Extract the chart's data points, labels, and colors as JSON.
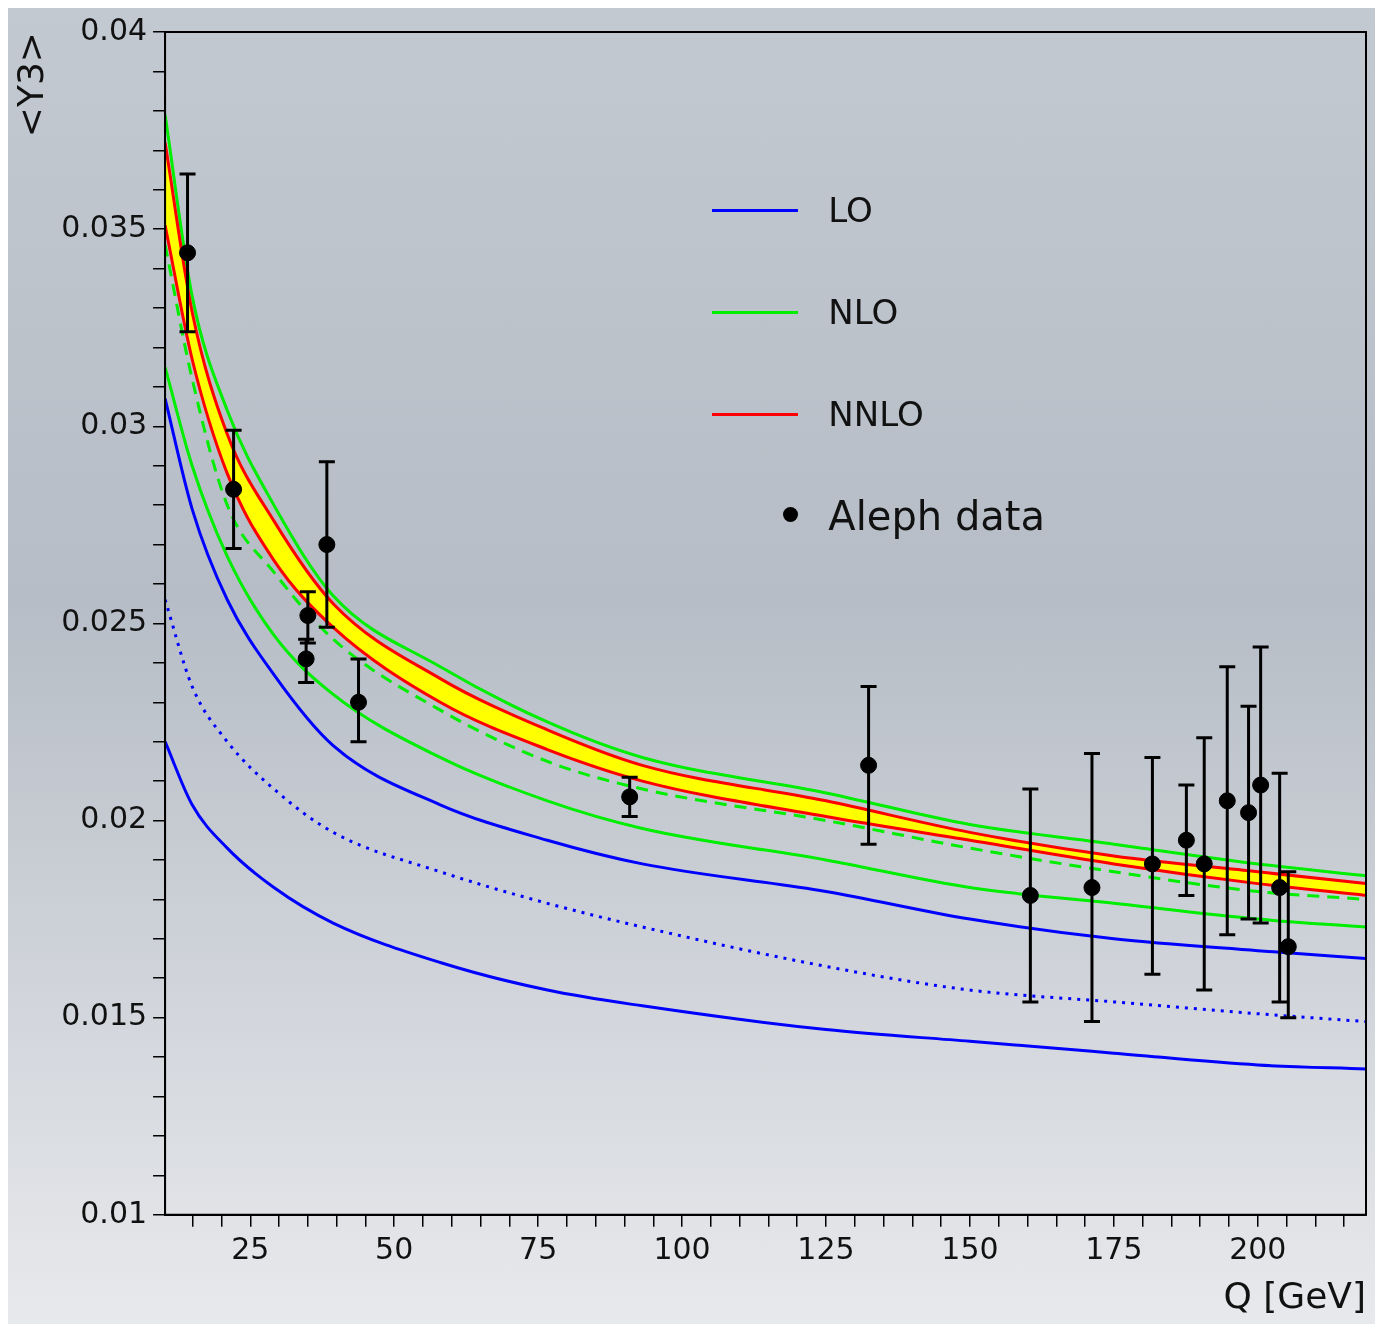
{
  "chart_data": {
    "type": "line",
    "xlabel": "Q [GeV]",
    "ylabel": "<Y3>",
    "xlim": [
      10.2,
      218.8
    ],
    "xticks": [
      {
        "value": 15,
        "label": null
      },
      {
        "value": 20,
        "label": null
      },
      25,
      {
        "value": 30,
        "label": null
      },
      {
        "value": 35,
        "label": null
      },
      {
        "value": 40,
        "label": null
      },
      {
        "value": 45,
        "label": null
      },
      50,
      {
        "value": 55,
        "label": null
      },
      {
        "value": 60,
        "label": null
      },
      {
        "value": 65,
        "label": null
      },
      {
        "value": 70,
        "label": null
      },
      75,
      {
        "value": 80,
        "label": null
      },
      {
        "value": 85,
        "label": null
      },
      {
        "value": 90,
        "label": null
      },
      {
        "value": 95,
        "label": null
      },
      100,
      {
        "value": 105,
        "label": null
      },
      {
        "value": 110,
        "label": null
      },
      {
        "value": 115,
        "label": null
      },
      {
        "value": 120,
        "label": null
      },
      125,
      {
        "value": 130,
        "label": null
      },
      {
        "value": 135,
        "label": null
      },
      {
        "value": 140,
        "label": null
      },
      {
        "value": 145,
        "label": null
      },
      150,
      {
        "value": 155,
        "label": null
      },
      {
        "value": 160,
        "label": null
      },
      {
        "value": 165,
        "label": null
      },
      {
        "value": 170,
        "label": null
      },
      175,
      {
        "value": 180,
        "label": null
      },
      {
        "value": 185,
        "label": null
      },
      {
        "value": 190,
        "label": null
      },
      {
        "value": 195,
        "label": null
      },
      200,
      {
        "value": 205,
        "label": null
      },
      {
        "value": 210,
        "label": null
      },
      {
        "value": 215,
        "label": null
      }
    ],
    "ylim": [
      0.01,
      0.04
    ],
    "yticks": [
      0.01,
      {
        "value": 0.011,
        "label": null
      },
      {
        "value": 0.012,
        "label": null
      },
      {
        "value": 0.013,
        "label": null
      },
      {
        "value": 0.014,
        "label": null
      },
      0.015,
      {
        "value": 0.016,
        "label": null
      },
      {
        "value": 0.017,
        "label": null
      },
      {
        "value": 0.018,
        "label": null
      },
      {
        "value": 0.019,
        "label": null
      },
      0.02,
      {
        "value": 0.021,
        "label": null
      },
      {
        "value": 0.022,
        "label": null
      },
      {
        "value": 0.023,
        "label": null
      },
      {
        "value": 0.024,
        "label": null
      },
      0.025,
      {
        "value": 0.026,
        "label": null
      },
      {
        "value": 0.027,
        "label": null
      },
      {
        "value": 0.028,
        "label": null
      },
      {
        "value": 0.029,
        "label": null
      },
      0.03,
      {
        "value": 0.031,
        "label": null
      },
      {
        "value": 0.032,
        "label": null
      },
      {
        "value": 0.033,
        "label": null
      },
      {
        "value": 0.034,
        "label": null
      },
      0.035,
      {
        "value": 0.036,
        "label": null
      },
      {
        "value": 0.037,
        "label": null
      },
      {
        "value": 0.038,
        "label": null
      },
      {
        "value": 0.039,
        "label": null
      },
      0.04
    ],
    "grid": false,
    "legend": "top right",
    "x": [
      10.2,
      14.9,
      21,
      29.1,
      39.4,
      58,
      76.6,
      93.1,
      125,
      150,
      175,
      200,
      218.8
    ],
    "series": [
      {
        "name": "LO",
        "color": "#0000ff",
        "line_style": "solid",
        "values": [
          0.022,
          0.0204,
          0.0193,
          0.0183,
          0.0174,
          0.0164,
          0.0157,
          0.0153,
          0.0147,
          0.0144,
          0.0141,
          0.0138,
          0.0137
        ]
      },
      {
        "color": "#0000ff",
        "line_style": "solid",
        "values": [
          0.0307,
          0.0279,
          0.0256,
          0.0237,
          0.0219,
          0.0204,
          0.0195,
          0.0189,
          0.0182,
          0.0175,
          0.017,
          0.0167,
          0.0165
        ]
      },
      {
        "color": "#0000ff",
        "line_style": "dotted",
        "values": [
          0.0256,
          0.0234,
          0.022,
          0.0208,
          0.0197,
          0.0187,
          0.0179,
          0.0173,
          0.0163,
          0.0157,
          0.0154,
          0.0151,
          0.0149
        ]
      },
      {
        "name": "NLO",
        "color": "#00ee00",
        "line_style": "solid",
        "values": [
          0.0315,
          0.029,
          0.0267,
          0.0247,
          0.0232,
          0.0216,
          0.0205,
          0.0198,
          0.019,
          0.0183,
          0.0179,
          0.0175,
          0.0173
        ]
      },
      {
        "color": "#00ee00",
        "line_style": "solid",
        "values": [
          0.0379,
          0.0333,
          0.0304,
          0.028,
          0.0257,
          0.0239,
          0.0225,
          0.0216,
          0.0207,
          0.0199,
          0.0194,
          0.0189,
          0.0186
        ]
      },
      {
        "color": "#00ee00",
        "line_style": "dashed",
        "values": [
          0.0346,
          0.0312,
          0.028,
          0.0263,
          0.0246,
          0.0228,
          0.0215,
          0.0208,
          0.02,
          0.0193,
          0.0187,
          0.0182,
          0.018
        ]
      },
      {
        "name": "NNLO",
        "type": "area",
        "color": "#ff0000",
        "line_style": "solid",
        "values": [
          0.0372,
          0.0329,
          0.0298,
          0.0276,
          0.0255,
          0.0236,
          0.0223,
          0.0214,
          0.0205,
          0.0197,
          0.0191,
          0.0187,
          0.0184
        ]
      },
      {
        "color": "#ff0000",
        "line_style": "solid",
        "values": [
          0.0351,
          0.0317,
          0.0288,
          0.0266,
          0.0249,
          0.023,
          0.0218,
          0.021,
          0.0201,
          0.0195,
          0.0189,
          0.0184,
          0.0181
        ]
      },
      {
        "name": "Aleph data",
        "type": "scatter",
        "color": "#000000",
        "marker": "circle",
        "x": [
          14.1,
          22.1,
          34.7,
          35,
          38.3,
          43.8,
          90.9,
          132.4,
          160.5,
          171.2,
          181.7,
          187.6,
          190.7,
          194.7,
          198.4,
          200.5,
          203.8,
          205.3
        ],
        "values": [
          0.0344,
          0.0284,
          0.0241,
          0.0252,
          0.027,
          0.023,
          0.0206,
          0.0214,
          0.0181,
          0.0183,
          0.0189,
          0.0195,
          0.0189,
          0.0205,
          0.0202,
          0.0209,
          0.0183,
          0.0168
        ],
        "errors": [
          [
            0.0324,
            0.0364
          ],
          [
            0.0269,
            0.0299
          ],
          [
            0.0235,
            0.0246
          ],
          [
            0.0245,
            0.0258
          ],
          [
            0.0249,
            0.0291
          ],
          [
            0.022,
            0.0241
          ],
          [
            0.0201,
            0.0211
          ],
          [
            0.0194,
            0.0234
          ],
          [
            0.0154,
            0.0208
          ],
          [
            0.0149,
            0.0217
          ],
          [
            0.0161,
            0.0216
          ],
          [
            0.0181,
            0.0209
          ],
          [
            0.0157,
            0.0221
          ],
          [
            0.0171,
            0.0239
          ],
          [
            0.0175,
            0.0229
          ],
          [
            0.0174,
            0.0244
          ],
          [
            0.0154,
            0.0212
          ],
          [
            0.015,
            0.0187
          ]
        ]
      }
    ]
  }
}
